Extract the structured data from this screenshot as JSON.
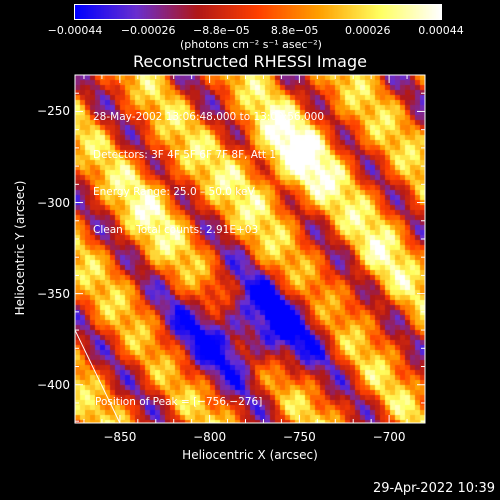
{
  "chart_data": {
    "type": "heatmap",
    "title": "Reconstructed RHESSI Image",
    "xlabel": "Heliocentric X (arcsec)",
    "ylabel": "Heliocentric Y (arcsec)",
    "xlim": [
      -875,
      -680
    ],
    "ylim": [
      -421,
      -230
    ],
    "x_ticks": [
      -850,
      -800,
      -750,
      -700
    ],
    "y_ticks": [
      -250,
      -300,
      -350,
      -400
    ],
    "x_tick_labels": [
      "−850",
      "−800",
      "−750",
      "−700"
    ],
    "y_tick_labels": [
      "−250",
      "−300",
      "−350",
      "−400"
    ],
    "colorbar": {
      "range": [
        -0.00044,
        0.00044
      ],
      "tick_labels": [
        "−0.00044",
        "−0.00026",
        "−8.8e−05",
        "8.8e−05",
        "0.00026",
        "0.00044"
      ],
      "unit_label": "(photons cm⁻² s⁻¹ asec⁻²)",
      "colors": [
        "#0000ff",
        "#6a2fd0",
        "#b01818",
        "#ff4000",
        "#ffa000",
        "#ffff60",
        "#ffffff"
      ]
    },
    "annotations": [
      "28‑May‑2002 13:06:48.000 to 13:09:56.000",
      "Detectors: 3F 4F 5F 6F 7F 8F, Att 1",
      "Energy Range: 25.0 – 50.0 keV",
      "Clean    Total counts: 2.91E+03"
    ],
    "peak_label": "Position of Peak = [−756,−276]",
    "peak": {
      "x": -756,
      "y": -276
    },
    "limb_line": [
      [
        -875,
        -370
      ],
      [
        -850,
        -421
      ]
    ]
  },
  "footer_timestamp": "29-Apr-2022 10:39"
}
